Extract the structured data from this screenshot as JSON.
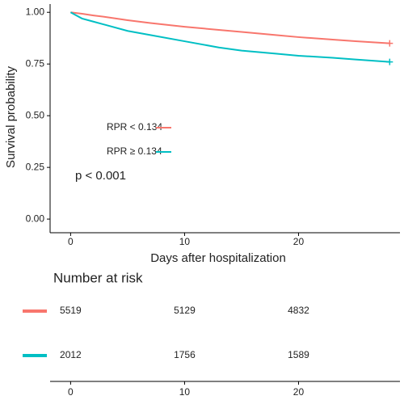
{
  "chart_data": {
    "type": "line",
    "xlabel": "Days after hospitalization",
    "ylabel": "Survival probability",
    "annotation": "p < 0.001",
    "x": [
      0,
      1,
      2,
      3,
      5,
      7,
      10,
      13,
      15,
      18,
      20,
      23,
      25,
      28
    ],
    "series": [
      {
        "name": "RPR < 0.134",
        "color": "#F8766D",
        "values": [
          1.0,
          0.993,
          0.985,
          0.978,
          0.962,
          0.948,
          0.93,
          0.915,
          0.905,
          0.89,
          0.88,
          0.868,
          0.86,
          0.85
        ]
      },
      {
        "name": "RPR ≥ 0.134",
        "color": "#00BFC4",
        "values": [
          1.0,
          0.97,
          0.955,
          0.94,
          0.91,
          0.89,
          0.86,
          0.83,
          0.815,
          0.8,
          0.79,
          0.78,
          0.772,
          0.76
        ]
      }
    ],
    "xlim": [
      -1.8,
      28.9
    ],
    "ylim": [
      -0.066,
      1.04
    ],
    "xticks": [
      0,
      10,
      20
    ],
    "yticks": [
      {
        "value": 0,
        "label": "0.00"
      },
      {
        "value": 0.25,
        "label": "0.25"
      },
      {
        "value": 0.5,
        "label": "0.50"
      },
      {
        "value": 0.75,
        "label": "0.75"
      },
      {
        "value": 1,
        "label": "1.00"
      }
    ],
    "risk_table": {
      "title": "Number at risk",
      "x": [
        0,
        10,
        20
      ],
      "rows": [
        {
          "color": "#F8766D",
          "values": [
            5519,
            5129,
            4832
          ]
        },
        {
          "color": "#00BFC4",
          "values": [
            2012,
            1756,
            1589
          ]
        }
      ]
    }
  }
}
